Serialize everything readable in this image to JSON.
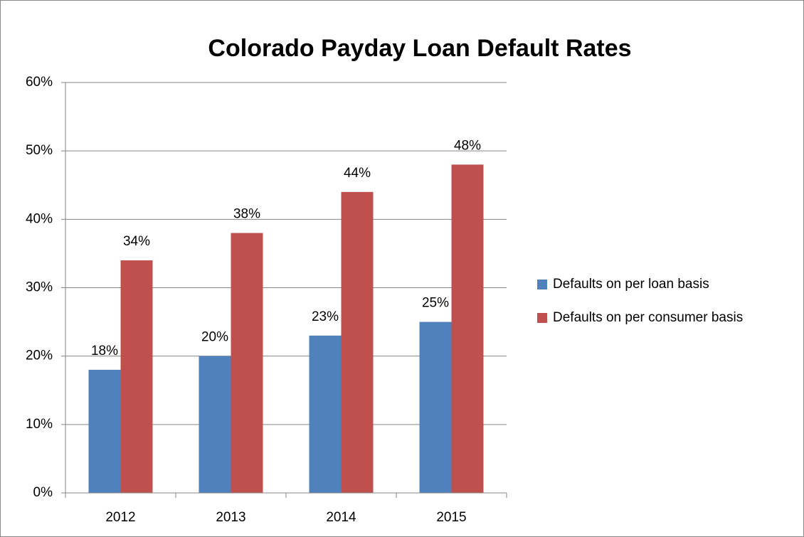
{
  "chart_data": {
    "type": "bar",
    "title": "Colorado Payday Loan Default Rates",
    "categories": [
      "2012",
      "2013",
      "2014",
      "2015"
    ],
    "series": [
      {
        "name": "Defaults on per loan basis",
        "color": "#4f81bd",
        "values": [
          18,
          20,
          23,
          25
        ],
        "value_labels": [
          "18%",
          "20%",
          "23%",
          "25%"
        ]
      },
      {
        "name": "Defaults on per consumer basis",
        "color": "#c0504d",
        "values": [
          34,
          38,
          44,
          48
        ],
        "value_labels": [
          "34%",
          "38%",
          "44%",
          "48%"
        ]
      }
    ],
    "ylim": [
      0,
      60
    ],
    "yticks": [
      {
        "value": 0,
        "label": "0%"
      },
      {
        "value": 10,
        "label": "10%"
      },
      {
        "value": 20,
        "label": "20%"
      },
      {
        "value": 30,
        "label": "30%"
      },
      {
        "value": 40,
        "label": "40%"
      },
      {
        "value": 50,
        "label": "50%"
      },
      {
        "value": 60,
        "label": "60%"
      }
    ],
    "grid": true,
    "legend": "right"
  }
}
